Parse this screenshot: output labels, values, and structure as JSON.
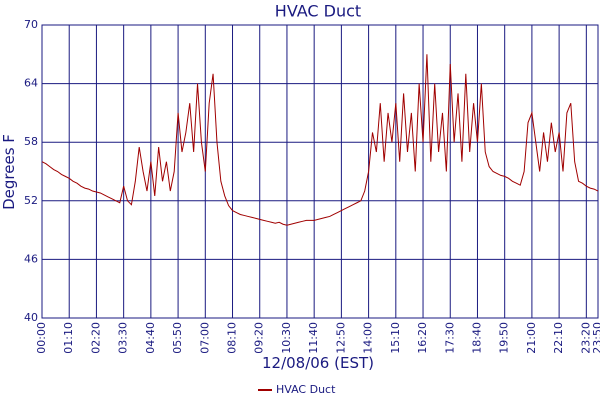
{
  "chart_data": {
    "type": "line",
    "title": "HVAC Duct",
    "x_label": "12/08/06 (EST)",
    "y_label": "Degrees F",
    "x": [
      0,
      10,
      20,
      30,
      40,
      50,
      60,
      70,
      80,
      90,
      100,
      110,
      120,
      130,
      140,
      150,
      160,
      170,
      180,
      190,
      200,
      210,
      220,
      230,
      240,
      250,
      260,
      270,
      280,
      290,
      300,
      310,
      320,
      330,
      340,
      350,
      360,
      370,
      380,
      390,
      400,
      410,
      420,
      430,
      440,
      450,
      460,
      470,
      480,
      490,
      500,
      510,
      520,
      530,
      540,
      550,
      560,
      570,
      580,
      590,
      600,
      610,
      620,
      630,
      640,
      650,
      660,
      670,
      680,
      690,
      700,
      710,
      720,
      730,
      740,
      750,
      760,
      770,
      780,
      790,
      800,
      810,
      820,
      830,
      840,
      850,
      860,
      870,
      880,
      890,
      900,
      910,
      920,
      930,
      940,
      950,
      960,
      970,
      980,
      990,
      1000,
      1010,
      1020,
      1030,
      1040,
      1050,
      1060,
      1070,
      1080,
      1090,
      1100,
      1110,
      1120,
      1130,
      1140,
      1150,
      1160,
      1170,
      1180,
      1190,
      1200,
      1210,
      1220,
      1230,
      1240,
      1250,
      1260,
      1270,
      1280,
      1290,
      1300,
      1310,
      1320,
      1330,
      1340,
      1350,
      1360,
      1370,
      1380,
      1390,
      1400,
      1410,
      1420,
      1430
    ],
    "series": [
      {
        "name": "HVAC Duct",
        "color": "#a00000",
        "values": [
          56,
          55.8,
          55.5,
          55.2,
          55,
          54.7,
          54.5,
          54.3,
          54,
          53.8,
          53.5,
          53.3,
          53.2,
          53,
          52.9,
          52.8,
          52.6,
          52.4,
          52.2,
          52,
          51.8,
          53.5,
          52,
          51.6,
          54,
          57.5,
          55,
          53,
          56,
          52.5,
          57.5,
          54,
          56,
          53,
          55,
          61,
          57,
          59,
          62,
          57,
          64,
          58,
          55,
          62,
          65,
          58,
          54,
          52.5,
          51.5,
          51,
          50.8,
          50.6,
          50.5,
          50.4,
          50.3,
          50.2,
          50.1,
          50,
          49.9,
          49.8,
          49.7,
          49.8,
          49.6,
          49.5,
          49.6,
          49.7,
          49.8,
          49.9,
          50,
          50,
          50,
          50.1,
          50.2,
          50.3,
          50.4,
          50.6,
          50.8,
          51,
          51.2,
          51.4,
          51.6,
          51.8,
          52,
          53,
          55,
          59,
          57,
          62,
          56,
          61,
          58,
          62,
          56,
          63,
          57,
          61,
          55,
          64,
          58,
          67,
          56,
          64,
          57,
          61,
          55,
          66,
          58,
          63,
          56,
          65,
          57,
          62,
          58,
          64,
          57,
          55.5,
          55,
          54.8,
          54.6,
          54.5,
          54.3,
          54,
          53.8,
          53.6,
          55,
          60,
          61,
          58,
          55,
          59,
          56,
          60,
          57,
          59,
          55,
          61,
          62,
          56,
          54,
          53.8,
          53.5,
          53.3,
          53.2,
          53
        ]
      }
    ],
    "xlim": [
      0,
      1430
    ],
    "xticks": [
      {
        "value": 0,
        "label": "00:00"
      },
      {
        "value": 70,
        "label": "01:10"
      },
      {
        "value": 140,
        "label": "02:20"
      },
      {
        "value": 210,
        "label": "03:30"
      },
      {
        "value": 280,
        "label": "04:40"
      },
      {
        "value": 350,
        "label": "05:50"
      },
      {
        "value": 420,
        "label": "07:00"
      },
      {
        "value": 490,
        "label": "08:10"
      },
      {
        "value": 560,
        "label": "09:20"
      },
      {
        "value": 630,
        "label": "10:30"
      },
      {
        "value": 700,
        "label": "11:40"
      },
      {
        "value": 770,
        "label": "12:50"
      },
      {
        "value": 840,
        "label": "14:00"
      },
      {
        "value": 910,
        "label": "15:10"
      },
      {
        "value": 980,
        "label": "16:20"
      },
      {
        "value": 1050,
        "label": "17:30"
      },
      {
        "value": 1120,
        "label": "18:40"
      },
      {
        "value": 1190,
        "label": "19:50"
      },
      {
        "value": 1260,
        "label": "21:00"
      },
      {
        "value": 1330,
        "label": "22:10"
      },
      {
        "value": 1400,
        "label": "23:20"
      },
      {
        "value": 1430,
        "label": "23:50"
      }
    ],
    "ylim": [
      40,
      70
    ],
    "yticks": [
      40,
      46,
      52,
      58,
      64,
      70
    ],
    "grid": true,
    "grid_color": "#1a1a80",
    "legend": "bottom"
  }
}
